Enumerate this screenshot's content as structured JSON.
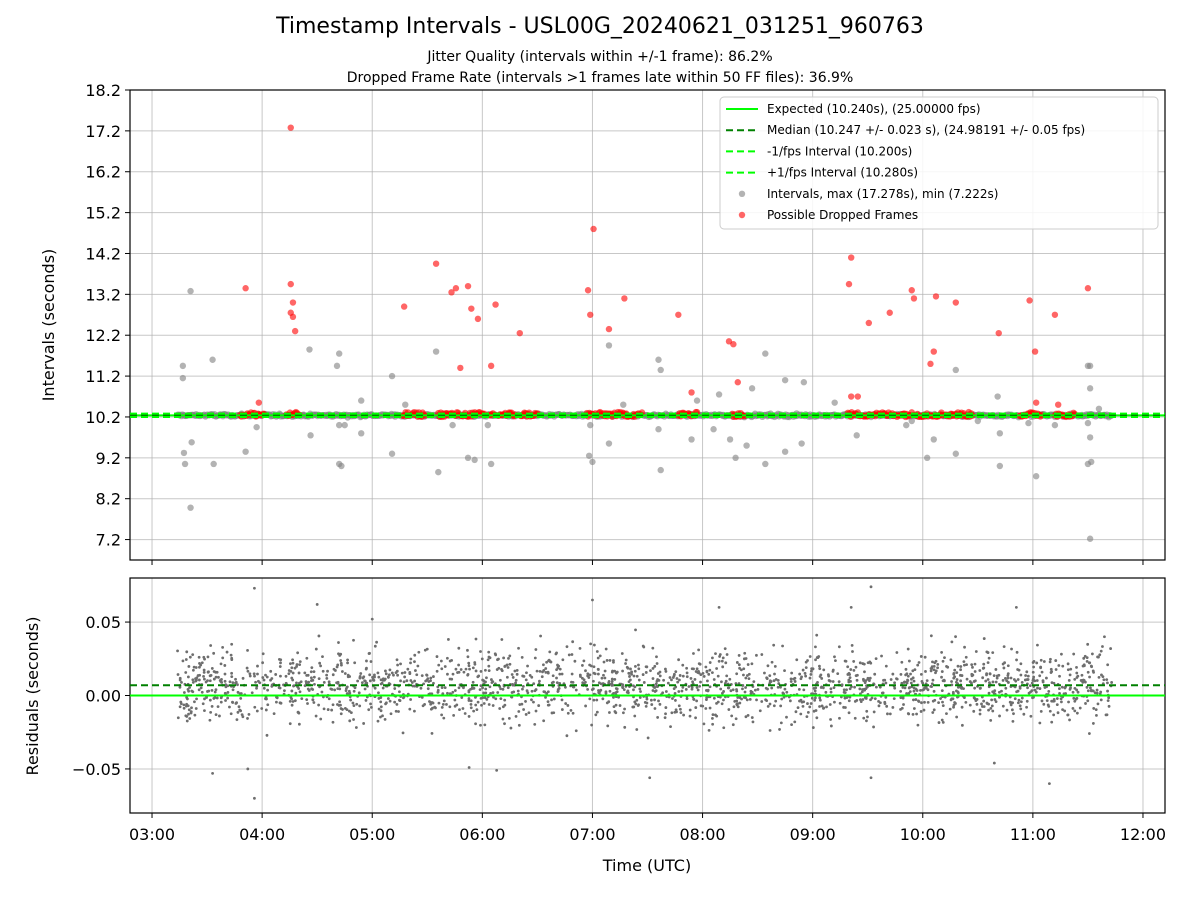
{
  "header": {
    "title": "Timestamp Intervals - USL00G_20240621_031251_960763",
    "subtitle_1": "Jitter Quality (intervals within +/-1 frame): 86.2%",
    "subtitle_2": "Dropped Frame Rate (intervals >1 frames late within 50 FF files): 36.9%"
  },
  "colors": {
    "expected": "#00ff00",
    "median": "#008000",
    "band": "#00ff00",
    "intervals": "#808080",
    "dropped": "#ff0000",
    "grid": "#b0b0b0"
  },
  "chart_data": [
    {
      "type": "scatter",
      "name": "intervals",
      "title": "Timestamp Intervals - USL00G_20240621_031251_960763",
      "xlabel": "",
      "ylabel": "Intervals (seconds)",
      "xlim_hours": [
        2.8,
        12.2
      ],
      "ylim": [
        6.7,
        18.2
      ],
      "yticks": [
        7.2,
        8.2,
        9.2,
        10.2,
        11.2,
        12.2,
        13.2,
        14.2,
        15.2,
        16.2,
        17.2,
        18.2
      ],
      "grid": true,
      "legend_position": "top-right",
      "reference_lines": [
        {
          "name": "expected",
          "label": "Expected (10.240s), (25.00000 fps)",
          "value": 10.24,
          "style": "solid"
        },
        {
          "name": "median",
          "label": "Median (10.247 +/- 0.023 s), (24.98191 +/- 0.05 fps)",
          "value": 10.247,
          "style": "dashed"
        },
        {
          "name": "minus-fps",
          "label": "-1/fps Interval (10.200s)",
          "value": 10.2,
          "style": "dashed"
        },
        {
          "name": "plus-fps",
          "label": "+1/fps Interval (10.280s)",
          "value": 10.28,
          "style": "dashed"
        }
      ],
      "series": [
        {
          "name": "Intervals, max (17.278s), min (7.222s)",
          "points": [
            [
              3.28,
              11.45
            ],
            [
              3.28,
              11.15
            ],
            [
              3.29,
              9.32
            ],
            [
              3.3,
              9.05
            ],
            [
              3.35,
              13.28
            ],
            [
              3.35,
              7.98
            ],
            [
              3.36,
              9.58
            ],
            [
              3.55,
              11.6
            ],
            [
              3.56,
              9.05
            ],
            [
              3.85,
              9.35
            ],
            [
              3.95,
              9.95
            ],
            [
              4.43,
              11.85
            ],
            [
              4.44,
              9.75
            ],
            [
              4.68,
              11.45
            ],
            [
              4.7,
              11.75
            ],
            [
              4.7,
              9.05
            ],
            [
              4.72,
              9.0
            ],
            [
              4.7,
              10.0
            ],
            [
              4.75,
              10.0
            ],
            [
              4.9,
              9.8
            ],
            [
              4.9,
              10.6
            ],
            [
              5.18,
              11.2
            ],
            [
              5.18,
              9.3
            ],
            [
              5.3,
              10.5
            ],
            [
              5.58,
              11.8
            ],
            [
              5.6,
              8.85
            ],
            [
              5.73,
              10.0
            ],
            [
              5.87,
              9.2
            ],
            [
              5.93,
              9.15
            ],
            [
              6.08,
              9.05
            ],
            [
              6.05,
              10.0
            ],
            [
              6.97,
              9.25
            ],
            [
              7.0,
              9.1
            ],
            [
              6.98,
              10.0
            ],
            [
              7.15,
              11.95
            ],
            [
              7.15,
              9.55
            ],
            [
              7.28,
              10.5
            ],
            [
              7.6,
              11.6
            ],
            [
              7.62,
              11.35
            ],
            [
              7.62,
              8.9
            ],
            [
              7.6,
              9.9
            ],
            [
              7.9,
              9.65
            ],
            [
              7.95,
              10.6
            ],
            [
              8.1,
              9.9
            ],
            [
              8.15,
              10.75
            ],
            [
              8.25,
              9.65
            ],
            [
              8.3,
              9.2
            ],
            [
              8.4,
              9.5
            ],
            [
              8.45,
              10.9
            ],
            [
              8.57,
              11.75
            ],
            [
              8.57,
              9.05
            ],
            [
              8.75,
              11.1
            ],
            [
              8.75,
              9.35
            ],
            [
              8.92,
              11.05
            ],
            [
              8.9,
              9.55
            ],
            [
              9.2,
              10.55
            ],
            [
              9.4,
              9.75
            ],
            [
              9.85,
              10.0
            ],
            [
              9.9,
              10.1
            ],
            [
              10.04,
              9.2
            ],
            [
              10.1,
              9.65
            ],
            [
              10.3,
              11.35
            ],
            [
              10.3,
              9.3
            ],
            [
              10.5,
              10.1
            ],
            [
              10.68,
              10.7
            ],
            [
              10.7,
              9.8
            ],
            [
              10.7,
              9.0
            ],
            [
              11.03,
              8.75
            ],
            [
              10.96,
              10.05
            ],
            [
              11.2,
              10.0
            ],
            [
              11.5,
              11.45
            ],
            [
              11.52,
              11.45
            ],
            [
              11.52,
              10.9
            ],
            [
              11.5,
              10.05
            ],
            [
              11.52,
              9.7
            ],
            [
              11.5,
              9.05
            ],
            [
              11.53,
              9.1
            ],
            [
              11.52,
              7.22
            ],
            [
              11.6,
              10.4
            ]
          ]
        },
        {
          "name": "Possible Dropped Frames",
          "points": [
            [
              3.85,
              13.35
            ],
            [
              3.97,
              10.55
            ],
            [
              4.26,
              17.278
            ],
            [
              4.26,
              13.45
            ],
            [
              4.26,
              12.75
            ],
            [
              4.28,
              13.0
            ],
            [
              4.28,
              12.65
            ],
            [
              4.3,
              12.3
            ],
            [
              5.29,
              12.9
            ],
            [
              5.58,
              13.95
            ],
            [
              5.72,
              13.25
            ],
            [
              5.76,
              13.35
            ],
            [
              5.8,
              11.4
            ],
            [
              5.87,
              13.4
            ],
            [
              5.9,
              12.85
            ],
            [
              5.96,
              12.6
            ],
            [
              6.08,
              11.45
            ],
            [
              6.12,
              12.95
            ],
            [
              6.34,
              12.25
            ],
            [
              6.96,
              13.3
            ],
            [
              6.98,
              12.7
            ],
            [
              7.01,
              14.8
            ],
            [
              7.15,
              12.35
            ],
            [
              7.29,
              13.1
            ],
            [
              7.78,
              12.7
            ],
            [
              7.9,
              10.8
            ],
            [
              8.24,
              12.05
            ],
            [
              8.28,
              11.98
            ],
            [
              8.32,
              11.05
            ],
            [
              9.33,
              13.45
            ],
            [
              9.35,
              14.1
            ],
            [
              9.35,
              10.7
            ],
            [
              9.41,
              10.7
            ],
            [
              9.51,
              12.5
            ],
            [
              9.7,
              12.75
            ],
            [
              9.9,
              13.3
            ],
            [
              9.92,
              13.1
            ],
            [
              10.07,
              11.5
            ],
            [
              10.1,
              11.8
            ],
            [
              10.12,
              13.15
            ],
            [
              10.3,
              13.0
            ],
            [
              10.69,
              12.25
            ],
            [
              10.97,
              13.05
            ],
            [
              11.02,
              11.8
            ],
            [
              11.03,
              10.55
            ],
            [
              11.2,
              12.7
            ],
            [
              11.23,
              10.5
            ],
            [
              11.5,
              13.35
            ]
          ],
          "dense_runs_hours": [
            [
              3.8,
              4.02
            ],
            [
              4.22,
              4.34
            ],
            [
              5.28,
              5.48
            ],
            [
              5.6,
              5.78
            ],
            [
              5.8,
              6.02
            ],
            [
              6.06,
              6.12
            ],
            [
              6.15,
              6.3
            ],
            [
              6.35,
              6.5
            ],
            [
              6.95,
              7.2
            ],
            [
              7.22,
              7.45
            ],
            [
              7.78,
              7.95
            ],
            [
              8.27,
              8.38
            ],
            [
              9.32,
              9.58
            ],
            [
              9.6,
              9.9
            ],
            [
              9.93,
              10.06
            ],
            [
              10.08,
              10.18
            ],
            [
              10.2,
              10.45
            ],
            [
              10.88,
              11.0
            ],
            [
              11.02,
              11.08
            ],
            [
              11.2,
              11.38
            ]
          ],
          "dense_value": 10.26
        }
      ]
    },
    {
      "type": "scatter",
      "name": "residuals",
      "xlabel": "Time (UTC)",
      "ylabel": "Residuals (seconds)",
      "xlim_hours": [
        2.8,
        12.2
      ],
      "ylim": [
        -0.08,
        0.08
      ],
      "yticks": [
        0.05,
        0.0,
        -0.05
      ],
      "ytick_labels": [
        "0.05",
        "0.00",
        "−0.05"
      ],
      "xticks_hours": [
        3,
        4,
        5,
        6,
        7,
        8,
        9,
        10,
        11,
        12
      ],
      "xtick_labels": [
        "03:00",
        "04:00",
        "05:00",
        "06:00",
        "07:00",
        "08:00",
        "09:00",
        "10:00",
        "11:00",
        "12:00"
      ],
      "grid": true,
      "reference_lines": [
        {
          "name": "expected",
          "value": 0.0,
          "style": "solid"
        },
        {
          "name": "median",
          "value": 0.007,
          "style": "dashed"
        }
      ],
      "residual_spread": {
        "time_range_hours": [
          3.23,
          11.72
        ],
        "typical_min": -0.035,
        "typical_max": 0.06,
        "center": 0.007
      },
      "outliers": [
        [
          3.93,
          0.073
        ],
        [
          3.93,
          -0.07
        ],
        [
          3.87,
          -0.05
        ],
        [
          3.55,
          -0.053
        ],
        [
          5.88,
          -0.049
        ],
        [
          6.13,
          -0.051
        ],
        [
          7.52,
          -0.056
        ],
        [
          9.53,
          0.074
        ],
        [
          9.53,
          -0.056
        ],
        [
          10.65,
          -0.046
        ],
        [
          11.15,
          -0.06
        ],
        [
          7.0,
          0.065
        ],
        [
          4.5,
          0.062
        ],
        [
          5.0,
          0.052
        ],
        [
          8.15,
          0.06
        ],
        [
          9.35,
          0.06
        ],
        [
          10.85,
          0.06
        ],
        [
          11.65,
          0.04
        ]
      ]
    }
  ]
}
